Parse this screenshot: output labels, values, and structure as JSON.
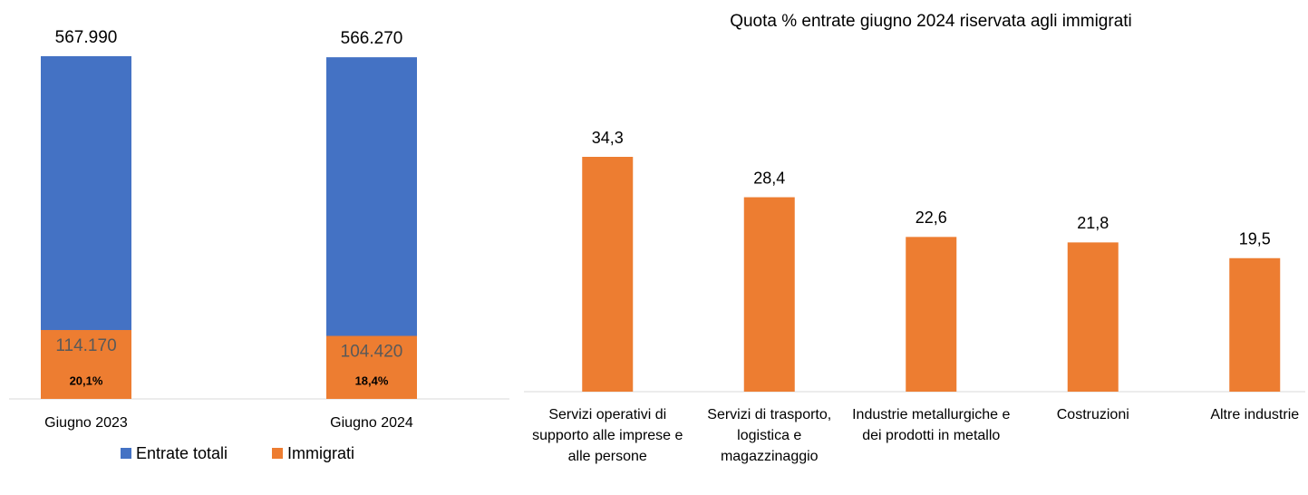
{
  "chart_data": [
    {
      "type": "bar",
      "categories": [
        "Giugno 2023",
        "Giugno 2024"
      ],
      "series": [
        {
          "name": "Entrate totali",
          "color": "#4472c4",
          "values": [
            567990,
            566270
          ],
          "value_labels": [
            "567.990",
            "566.270"
          ]
        },
        {
          "name": "Immigrati",
          "color": "#ed7d31",
          "values": [
            114170,
            104420
          ],
          "value_labels": [
            "114.170",
            "104.420"
          ]
        }
      ],
      "share_labels": [
        "20,1%",
        "18,4%"
      ]
    },
    {
      "type": "bar",
      "title": "Quota % entrate giugno  2024 riservata agli immigrati",
      "categories": [
        "Servizi operativi di supporto alle imprese e alle persone",
        "Servizi di trasporto, logistica e magazzinaggio",
        "Industrie metallurgiche e dei prodotti in metallo",
        "Costruzioni",
        "Altre industrie"
      ],
      "values": [
        34.3,
        28.4,
        22.6,
        21.8,
        19.5
      ],
      "value_labels": [
        "34,3",
        "28,4",
        "22,6",
        "21,8",
        "19,5"
      ],
      "color": "#ed7d31"
    }
  ]
}
